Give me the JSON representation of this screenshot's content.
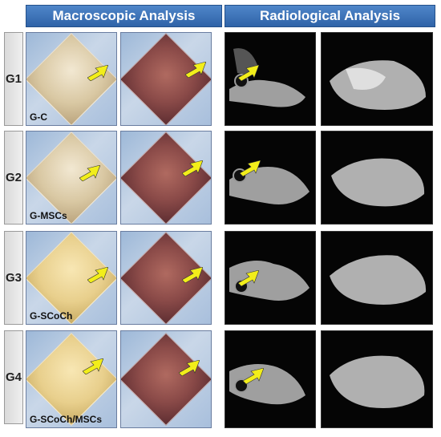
{
  "headers": {
    "macroscopic": "Macroscopic Analysis",
    "radiological": "Radiological Analysis"
  },
  "groups": [
    {
      "label": "G1",
      "caption": "G-C"
    },
    {
      "label": "G2",
      "caption": "G-MSCs"
    },
    {
      "label": "G3",
      "caption": "G-SCoCh"
    },
    {
      "label": "G4",
      "caption": "G-SCoCh/MSCs"
    }
  ],
  "colors": {
    "header_blue": "#3a70b5",
    "arrow_yellow": "#f2ee1a"
  },
  "icons": [
    "arrow-icon"
  ]
}
